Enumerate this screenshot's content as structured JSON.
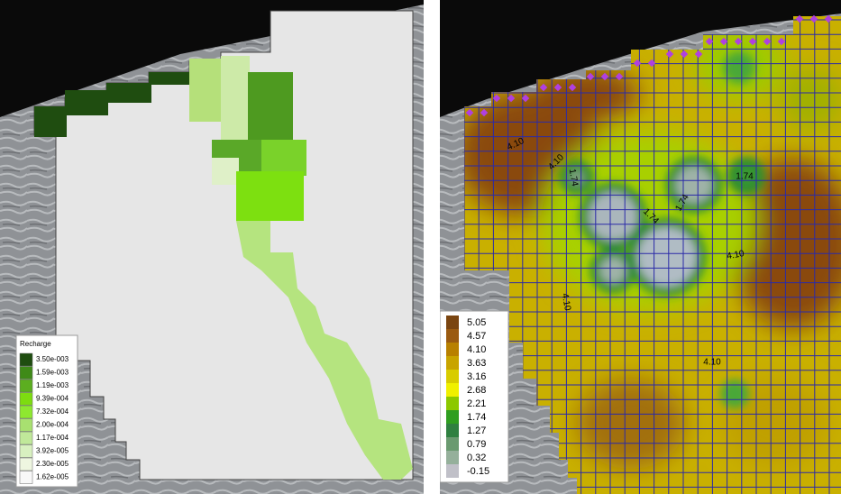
{
  "left_map": {
    "legend": {
      "title": "Recharge",
      "labels": [
        "3.50e-003",
        "1.59e-003",
        "1.19e-003",
        "9.39e-004",
        "7.32e-004",
        "2.00e-004",
        "1.17e-004",
        "3.92e-005",
        "2.30e-005",
        "1.62e-005"
      ],
      "colors": [
        "#1f4d10",
        "#3f8a18",
        "#5cae20",
        "#7ddc10",
        "#8ee830",
        "#a8e070",
        "#c0e89a",
        "#d8f0c0",
        "#eef6e0",
        "#f8f8f8"
      ]
    }
  },
  "right_map": {
    "legend": {
      "labels": [
        "5.05",
        "4.57",
        "4.10",
        "3.63",
        "3.16",
        "2.68",
        "2.21",
        "1.74",
        "1.27",
        "0.79",
        "0.32",
        "-0.15"
      ],
      "colors": [
        "#7a4510",
        "#9a5a10",
        "#b88000",
        "#c8a400",
        "#d8cc00",
        "#f0f000",
        "#8cc800",
        "#2f9e20",
        "#2f8040",
        "#6a9a70",
        "#95b09b",
        "#c0c0c8"
      ]
    },
    "contour_labels": [
      "4.10",
      "4.10",
      "1.74",
      "1.74",
      "1.74",
      "1.74",
      "4.10",
      "4.10",
      "4.10"
    ]
  }
}
